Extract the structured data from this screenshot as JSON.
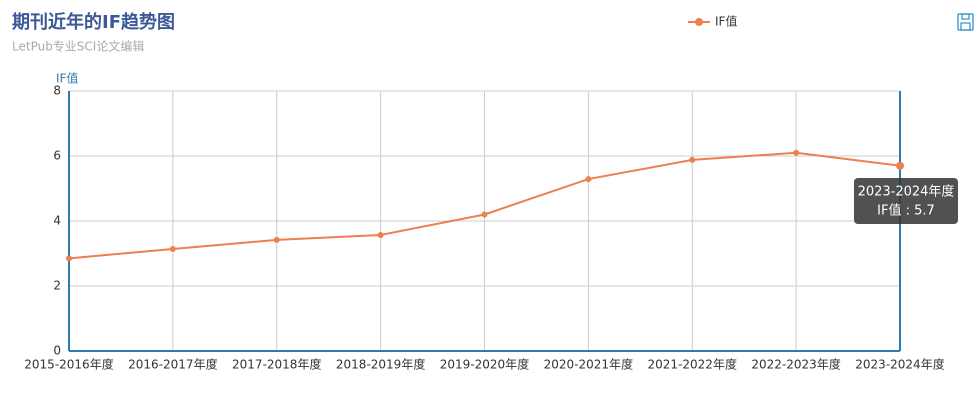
{
  "chart_data": {
    "type": "line",
    "title": "期刊近年的IF趋势图",
    "subtitle": "LetPub专业SCI论文编辑",
    "y_axis_label": "IF值",
    "categories": [
      "2015-2016年度",
      "2016-2017年度",
      "2017-2018年度",
      "2018-2019年度",
      "2019-2020年度",
      "2020-2021年度",
      "2021-2022年度",
      "2022-2023年度",
      "2023-2024年度"
    ],
    "series": [
      {
        "name": "IF值",
        "color": "#ee7f50",
        "values": [
          2.85,
          3.14,
          3.42,
          3.57,
          4.2,
          5.29,
          5.88,
          6.1,
          5.7
        ]
      }
    ],
    "ylim": [
      0,
      8
    ],
    "yticks": [
      0,
      2,
      4,
      6,
      8
    ],
    "grid": true,
    "legend": "top",
    "tooltip": {
      "title": "2023-2024年度",
      "text": "IF值 : 5.7"
    }
  }
}
